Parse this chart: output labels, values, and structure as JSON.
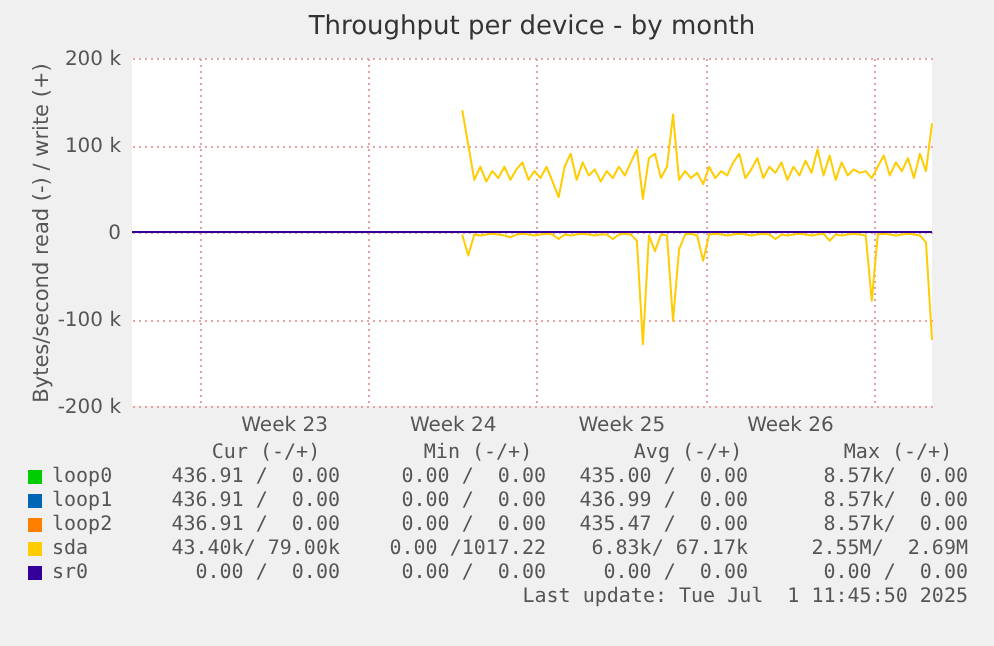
{
  "chart_data": {
    "type": "line",
    "title": "Throughput per device - by month",
    "ylabel": "Bytes/second read (-) / write (+)",
    "xlim": [
      "2025-05-30T05:00",
      "2025-07-02T10:00"
    ],
    "xticks": [
      {
        "value": "2025-06-02T00:00",
        "label": null
      },
      {
        "value": "2025-06-05T12:00",
        "label": "Week 23"
      },
      {
        "value": "2025-06-09T00:00",
        "label": null
      },
      {
        "value": "2025-06-12T12:00",
        "label": "Week 24"
      },
      {
        "value": "2025-06-16T00:00",
        "label": null
      },
      {
        "value": "2025-06-19T12:00",
        "label": "Week 25"
      },
      {
        "value": "2025-06-23T00:00",
        "label": null
      },
      {
        "value": "2025-06-26T12:00",
        "label": "Week 26"
      },
      {
        "value": "2025-06-30T00:00",
        "label": null
      }
    ],
    "ylim": [
      -200000,
      200000
    ],
    "yticks": [
      {
        "value": -200000,
        "label": "-200 k"
      },
      {
        "value": -100000,
        "label": "-100 k"
      },
      0,
      {
        "value": 100000,
        "label": "100 k"
      },
      {
        "value": 200000,
        "label": "200 k"
      }
    ],
    "grid": true,
    "legend": "bottom",
    "x": [
      "2025-06-12T22:00",
      "2025-06-13T04:00",
      "2025-06-13T10:00",
      "2025-06-13T16:00",
      "2025-06-13T22:00",
      "2025-06-14T04:00",
      "2025-06-14T10:00",
      "2025-06-14T16:00",
      "2025-06-14T22:00",
      "2025-06-15T04:00",
      "2025-06-15T10:00",
      "2025-06-15T16:00",
      "2025-06-15T22:00",
      "2025-06-16T04:00",
      "2025-06-16T10:00",
      "2025-06-16T16:00",
      "2025-06-16T22:00",
      "2025-06-17T04:00",
      "2025-06-17T10:00",
      "2025-06-17T16:00",
      "2025-06-17T22:00",
      "2025-06-18T04:00",
      "2025-06-18T10:00",
      "2025-06-18T16:00",
      "2025-06-18T22:00",
      "2025-06-19T04:00",
      "2025-06-19T10:00",
      "2025-06-19T16:00",
      "2025-06-19T22:00",
      "2025-06-20T04:00",
      "2025-06-20T10:00",
      "2025-06-20T16:00",
      "2025-06-20T22:00",
      "2025-06-21T04:00",
      "2025-06-21T10:00",
      "2025-06-21T16:00",
      "2025-06-21T22:00",
      "2025-06-22T04:00",
      "2025-06-22T10:00",
      "2025-06-22T16:00",
      "2025-06-22T22:00",
      "2025-06-23T04:00",
      "2025-06-23T10:00",
      "2025-06-23T16:00",
      "2025-06-23T22:00",
      "2025-06-24T04:00",
      "2025-06-24T10:00",
      "2025-06-24T16:00",
      "2025-06-24T22:00",
      "2025-06-25T04:00",
      "2025-06-25T10:00",
      "2025-06-25T16:00",
      "2025-06-25T22:00",
      "2025-06-26T04:00",
      "2025-06-26T10:00",
      "2025-06-26T16:00",
      "2025-06-26T22:00",
      "2025-06-27T04:00",
      "2025-06-27T10:00",
      "2025-06-27T16:00",
      "2025-06-27T22:00",
      "2025-06-28T04:00",
      "2025-06-28T10:00",
      "2025-06-28T16:00",
      "2025-06-28T22:00",
      "2025-06-29T04:00",
      "2025-06-29T10:00",
      "2025-06-29T16:00",
      "2025-06-29T22:00",
      "2025-06-30T04:00",
      "2025-06-30T10:00",
      "2025-06-30T16:00",
      "2025-06-30T22:00",
      "2025-07-01T04:00",
      "2025-07-01T10:00",
      "2025-07-01T16:00",
      "2025-07-01T22:00",
      "2025-07-02T04:00",
      "2025-07-02T10:00"
    ],
    "series": [
      {
        "name": "loop0",
        "color": "#00cc00",
        "values": [
          null,
          null,
          null,
          null,
          null,
          null,
          null,
          null,
          null,
          null,
          null,
          null,
          null,
          null,
          null,
          null,
          null,
          null,
          null,
          null,
          null,
          null,
          null,
          null,
          null,
          null,
          null,
          null,
          null,
          null,
          null,
          null,
          null,
          null,
          null,
          null,
          null,
          null,
          null,
          null,
          null,
          null,
          null,
          null,
          null,
          null,
          null,
          null,
          null,
          null,
          null,
          null,
          null,
          null,
          null,
          null,
          null,
          null,
          null,
          null,
          null,
          null,
          null,
          null,
          null,
          null,
          null,
          null,
          null,
          null,
          null,
          null,
          null,
          null,
          null,
          null,
          null,
          null,
          null
        ]
      },
      {
        "name": "loop1",
        "color": "#0066b3",
        "values": [
          null,
          null,
          null,
          null,
          null,
          null,
          null,
          null,
          null,
          null,
          null,
          null,
          null,
          null,
          null,
          null,
          null,
          null,
          null,
          null,
          null,
          null,
          null,
          null,
          null,
          null,
          null,
          null,
          null,
          null,
          null,
          null,
          null,
          null,
          null,
          null,
          null,
          null,
          null,
          null,
          null,
          null,
          null,
          null,
          null,
          null,
          null,
          null,
          null,
          null,
          null,
          null,
          null,
          null,
          null,
          null,
          null,
          null,
          null,
          null,
          null,
          null,
          null,
          null,
          null,
          null,
          null,
          null,
          null,
          null,
          null,
          null,
          null,
          null,
          null,
          null,
          null,
          null,
          null
        ]
      },
      {
        "name": "loop2",
        "color": "#ff8000",
        "values": [
          null,
          null,
          null,
          null,
          null,
          null,
          null,
          null,
          null,
          null,
          null,
          null,
          null,
          null,
          null,
          null,
          null,
          null,
          null,
          null,
          null,
          null,
          null,
          null,
          null,
          null,
          null,
          null,
          null,
          null,
          null,
          null,
          null,
          null,
          null,
          null,
          null,
          null,
          null,
          null,
          null,
          null,
          null,
          null,
          null,
          null,
          null,
          null,
          null,
          null,
          null,
          null,
          null,
          null,
          null,
          null,
          null,
          null,
          null,
          null,
          null,
          null,
          null,
          null,
          null,
          null,
          null,
          null,
          null,
          null,
          null,
          null,
          null,
          null,
          null,
          null,
          null,
          null,
          null
        ]
      },
      {
        "name": "sda",
        "color": "#ffcc00",
        "values": [
          -3000,
          -27000,
          -3000,
          -4000,
          -3000,
          -2000,
          -3000,
          -4000,
          -6000,
          -3000,
          -2000,
          -3000,
          -4000,
          -3000,
          -2000,
          -3000,
          -8000,
          -3000,
          -4000,
          -3000,
          -2000,
          -3000,
          -4000,
          -3000,
          -3000,
          -8000,
          -3000,
          -2000,
          -3000,
          -10000,
          -129000,
          -4000,
          -22000,
          -3000,
          -4000,
          -102000,
          -20000,
          -3000,
          -2000,
          -4000,
          -33000,
          -3000,
          -2000,
          -3000,
          -4000,
          -3000,
          -2000,
          -3000,
          -4000,
          -3000,
          -2000,
          -3000,
          -8000,
          -3000,
          -4000,
          -3000,
          -2000,
          -3000,
          -4000,
          -3000,
          -2000,
          -10000,
          -3000,
          -4000,
          -3000,
          -2000,
          -3000,
          -4000,
          -79000,
          -3000,
          -2000,
          -3000,
          -4000,
          -3000,
          -2000,
          -3000,
          -4000,
          -12000,
          -124000
        ]
      },
      {
        "color": "#ffcc00",
        "values": [
          140000,
          100000,
          60000,
          75000,
          58000,
          70000,
          62000,
          75000,
          60000,
          72000,
          80000,
          60000,
          70000,
          62000,
          75000,
          58000,
          40000,
          75000,
          90000,
          60000,
          80000,
          65000,
          72000,
          58000,
          70000,
          62000,
          75000,
          65000,
          80000,
          95000,
          38000,
          85000,
          90000,
          62000,
          75000,
          135000,
          60000,
          70000,
          62000,
          68000,
          55000,
          75000,
          62000,
          70000,
          65000,
          80000,
          90000,
          62000,
          72000,
          85000,
          62000,
          75000,
          68000,
          80000,
          60000,
          75000,
          65000,
          82000,
          68000,
          95000,
          65000,
          88000,
          60000,
          80000,
          65000,
          72000,
          68000,
          70000,
          62000,
          75000,
          88000,
          65000,
          80000,
          70000,
          85000,
          62000,
          90000,
          70000,
          125000
        ]
      },
      {
        "name": "sr0",
        "color": "#330099",
        "x": [
          "2025-05-30T05:00",
          "2025-07-02T10:00"
        ],
        "values": [
          0,
          0
        ]
      }
    ],
    "annotations": [
      "Cur (-/+)",
      "Min (-/+)",
      "Avg (-/+)",
      "Max (-/+)",
      "436.91 /  0.00",
      "0.00 /  0.00",
      "435.00 /  0.00",
      "8.57k/  0.00",
      "436.91 /  0.00",
      "0.00 /  0.00",
      "436.99 /  0.00",
      "8.57k/  0.00",
      "436.91 /  0.00",
      "0.00 /  0.00",
      "435.47 /  0.00",
      "8.57k/  0.00",
      "43.40k/ 79.00k",
      "0.00 /1017.22",
      "6.83k/ 67.17k",
      "2.55M/  2.69M",
      "0.00 /  0.00",
      "0.00 /  0.00",
      "0.00 /  0.00",
      "0.00 /  0.00",
      "Last update: Tue Jul  1 11:45:50 2025"
    ]
  }
}
